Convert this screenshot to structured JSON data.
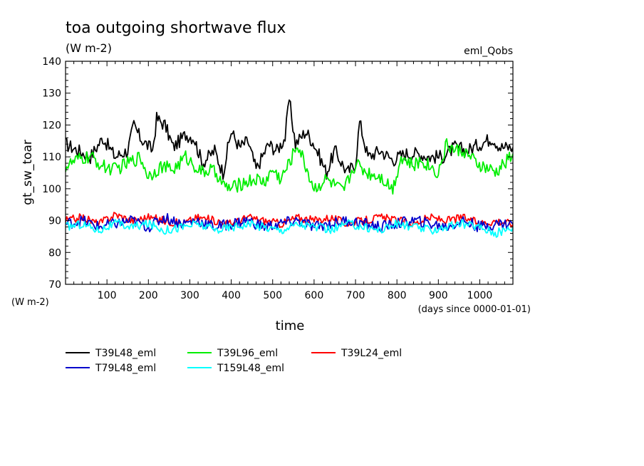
{
  "chart_data": {
    "type": "line",
    "title": "toa outgoing shortwave flux",
    "units": "(W m-2)",
    "experiment": "eml_Qobs",
    "xlabel": "time",
    "x_units": "(days since 0000-01-01)",
    "ylabel": "gt_sw_toar",
    "y_units": "(W m-2)",
    "xlim": [
      0,
      1080
    ],
    "ylim": [
      70,
      140
    ],
    "xticks": [
      100,
      200,
      300,
      400,
      500,
      600,
      700,
      800,
      900,
      1000
    ],
    "yticks": [
      70,
      80,
      90,
      100,
      110,
      120,
      130,
      140
    ],
    "legend_position": "bottom",
    "series": [
      {
        "name": "T39L48_eml",
        "color": "#000000",
        "x": [
          0,
          30,
          60,
          90,
          120,
          150,
          165,
          180,
          210,
          220,
          240,
          260,
          290,
          310,
          330,
          360,
          380,
          400,
          420,
          440,
          460,
          490,
          510,
          530,
          540,
          555,
          580,
          600,
          630,
          650,
          680,
          700,
          710,
          730,
          760,
          790,
          820,
          850,
          880,
          910,
          940,
          970,
          1000,
          1030,
          1050,
          1060,
          1080
        ],
        "y": [
          114,
          112,
          110,
          116,
          110,
          112,
          120,
          116,
          112,
          122,
          120,
          113,
          117,
          116,
          108,
          112,
          105,
          118,
          113,
          115,
          106,
          114,
          112,
          116,
          128,
          114,
          118,
          114,
          105,
          112,
          105,
          108,
          121,
          110,
          112,
          109,
          111,
          111,
          110,
          110,
          113,
          112,
          114,
          116,
          113,
          113,
          113
        ]
      },
      {
        "name": "T39L96_eml",
        "color": "#00ee00",
        "x": [
          0,
          30,
          60,
          90,
          120,
          150,
          180,
          200,
          230,
          260,
          290,
          330,
          350,
          370,
          380,
          400,
          430,
          460,
          480,
          500,
          520,
          540,
          560,
          580,
          600,
          630,
          650,
          670,
          700,
          730,
          760,
          790,
          810,
          840,
          860,
          880,
          900,
          920,
          940,
          960,
          990,
          1020,
          1040,
          1060,
          1080
        ],
        "y": [
          107,
          109,
          110,
          107,
          106,
          108,
          110,
          104,
          107,
          106,
          110,
          105,
          106,
          104,
          101,
          100,
          102,
          103,
          102,
          106,
          103,
          108,
          114,
          107,
          100,
          103,
          101,
          99,
          108,
          105,
          104,
          100,
          110,
          107,
          109,
          107,
          105,
          114,
          112,
          112,
          108,
          106,
          105,
          108,
          111
        ]
      },
      {
        "name": "T39L24_eml",
        "color": "#ff0000",
        "x": [
          0,
          40,
          80,
          120,
          160,
          200,
          240,
          280,
          320,
          360,
          400,
          440,
          480,
          520,
          560,
          600,
          640,
          680,
          720,
          760,
          800,
          840,
          880,
          920,
          960,
          1000,
          1040,
          1080
        ],
        "y": [
          90,
          91,
          89,
          92,
          90,
          91,
          90,
          89,
          91,
          90,
          89,
          91,
          90,
          89,
          91,
          90,
          91,
          89,
          90,
          91,
          90,
          89,
          91,
          90,
          91,
          89,
          90,
          89
        ]
      },
      {
        "name": "T79L48_eml",
        "color": "#0000cc",
        "x": [
          0,
          40,
          80,
          120,
          160,
          200,
          240,
          280,
          320,
          360,
          400,
          440,
          480,
          520,
          560,
          600,
          640,
          680,
          720,
          760,
          800,
          840,
          880,
          920,
          960,
          1000,
          1040,
          1080
        ],
        "y": [
          89,
          90,
          88,
          89,
          90,
          88,
          91,
          89,
          90,
          88,
          89,
          90,
          88,
          89,
          90,
          88,
          89,
          90,
          89,
          88,
          89,
          90,
          89,
          88,
          90,
          88,
          89,
          89
        ]
      },
      {
        "name": "T159L48_eml",
        "color": "#00ffff",
        "x": [
          0,
          40,
          80,
          120,
          160,
          200,
          240,
          280,
          320,
          360,
          400,
          440,
          480,
          520,
          560,
          600,
          640,
          680,
          720,
          760,
          800,
          840,
          880,
          920,
          960,
          1000,
          1040,
          1080
        ],
        "y": [
          88,
          89,
          87,
          89,
          88,
          89,
          87,
          88,
          89,
          87,
          88,
          89,
          88,
          87,
          89,
          88,
          87,
          89,
          88,
          87,
          89,
          88,
          87,
          88,
          89,
          88,
          86,
          88
        ]
      }
    ]
  }
}
